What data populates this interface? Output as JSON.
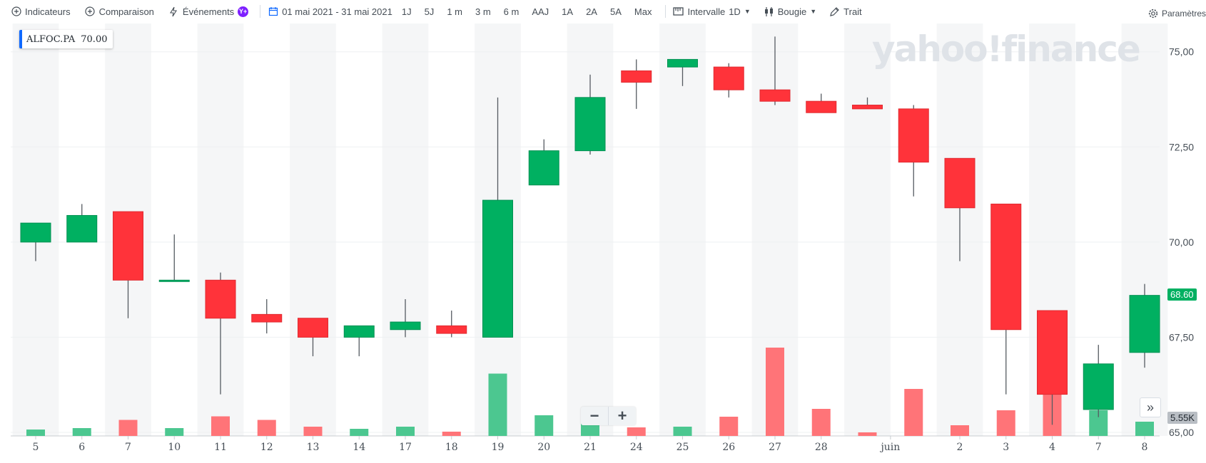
{
  "toolbar": {
    "indicators": "Indicateurs",
    "comparison": "Comparaison",
    "events": "Événements",
    "events_badge": "Y+",
    "date_range": "01 mai 2021 - 31 mai 2021",
    "ranges": [
      "1J",
      "5J",
      "1 m",
      "3 m",
      "6 m",
      "AAJ",
      "1A",
      "2A",
      "5A",
      "Max"
    ],
    "interval_label": "Intervalle",
    "interval_value": "1D",
    "chart_type": "Bougie",
    "draw": "Trait",
    "settings": "Paramètres"
  },
  "legend": {
    "symbol": "ALFOC.PA",
    "value": "70.00",
    "color": "#0f69ff"
  },
  "watermark": "yahoo!finance",
  "price_badge": "68.60",
  "volume_badge": "5.55K",
  "colors": {
    "up": "#00b061",
    "down": "#ff333a",
    "up_vol": "#4cc790",
    "down_vol": "#ff7478"
  },
  "chart_data": {
    "type": "candlestick",
    "symbol": "ALFOC.PA",
    "ylim": [
      65,
      75.5
    ],
    "yticks": [
      "75,00",
      "72,50",
      "70,00",
      "67,50",
      "65,00"
    ],
    "ytick_values": [
      75,
      72.5,
      70,
      67.5,
      65
    ],
    "x_labels": [
      "5",
      "6",
      "7",
      "10",
      "11",
      "12",
      "13",
      "14",
      "17",
      "18",
      "19",
      "20",
      "21",
      "24",
      "25",
      "26",
      "27",
      "28",
      "juin",
      "2",
      "3",
      "4",
      "7",
      "8"
    ],
    "x_label_index": [
      0,
      1,
      2,
      3,
      4,
      5,
      6,
      7,
      8,
      9,
      10,
      11,
      12,
      13,
      14,
      15,
      16,
      17,
      18.5,
      20,
      21,
      22,
      23,
      24
    ],
    "candles": [
      {
        "open": 70.0,
        "high": 70.5,
        "low": 69.5,
        "close": 70.5
      },
      {
        "open": 70.0,
        "high": 71.0,
        "low": 70.0,
        "close": 70.7
      },
      {
        "open": 70.8,
        "high": 70.8,
        "low": 68.0,
        "close": 69.0
      },
      {
        "open": 69.0,
        "high": 70.2,
        "low": 69.0,
        "close": 69.0
      },
      {
        "open": 69.0,
        "high": 69.2,
        "low": 66.0,
        "close": 68.0
      },
      {
        "open": 68.1,
        "high": 68.5,
        "low": 67.6,
        "close": 67.9
      },
      {
        "open": 68.0,
        "high": 68.0,
        "low": 67.0,
        "close": 67.5
      },
      {
        "open": 67.5,
        "high": 67.8,
        "low": 67.0,
        "close": 67.8
      },
      {
        "open": 67.7,
        "high": 68.5,
        "low": 67.5,
        "close": 67.9
      },
      {
        "open": 67.8,
        "high": 68.2,
        "low": 67.5,
        "close": 67.6
      },
      {
        "open": 67.5,
        "high": 73.8,
        "low": 67.5,
        "close": 71.1
      },
      {
        "open": 71.5,
        "high": 72.7,
        "low": 71.5,
        "close": 72.4
      },
      {
        "open": 72.4,
        "high": 74.4,
        "low": 72.3,
        "close": 73.8
      },
      {
        "open": 74.5,
        "high": 74.8,
        "low": 73.5,
        "close": 74.2
      },
      {
        "open": 74.6,
        "high": 74.8,
        "low": 74.1,
        "close": 74.8
      },
      {
        "open": 74.6,
        "high": 74.7,
        "low": 73.8,
        "close": 74.0
      },
      {
        "open": 74.0,
        "high": 75.4,
        "low": 73.6,
        "close": 73.7
      },
      {
        "open": 73.7,
        "high": 73.9,
        "low": 73.4,
        "close": 73.4
      },
      {
        "open": 73.6,
        "high": 73.8,
        "low": 73.5,
        "close": 73.5
      },
      {
        "open": 73.5,
        "high": 73.6,
        "low": 71.2,
        "close": 72.1
      },
      {
        "open": 72.2,
        "high": 72.2,
        "low": 69.5,
        "close": 70.9
      },
      {
        "open": 71.0,
        "high": 71.0,
        "low": 66.0,
        "close": 67.7
      },
      {
        "open": 68.2,
        "high": 68.2,
        "low": 65.2,
        "close": 66.0
      },
      {
        "open": 65.6,
        "high": 67.3,
        "low": 65.4,
        "close": 66.8
      },
      {
        "open": 67.1,
        "high": 68.9,
        "low": 66.7,
        "close": 68.6
      }
    ],
    "volume": [
      0.18,
      0.22,
      0.45,
      0.22,
      0.55,
      0.45,
      0.26,
      0.2,
      0.26,
      0.12,
      1.75,
      0.58,
      0.6,
      0.24,
      0.26,
      0.54,
      2.48,
      0.76,
      0.1,
      1.32,
      0.3,
      0.72,
      1.22,
      0.72,
      0.4
    ],
    "last_price": 68.6,
    "last_volume": "5.55K"
  }
}
